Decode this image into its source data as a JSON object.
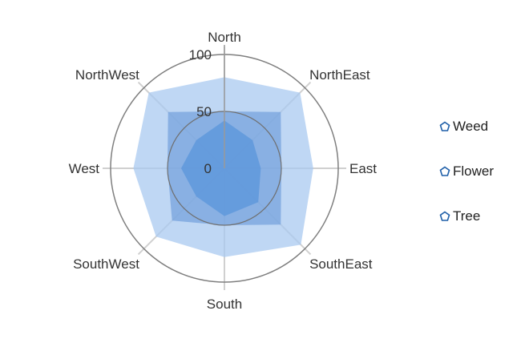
{
  "chart_data": {
    "type": "radar",
    "style": "filled-polar-area",
    "categories": [
      "North",
      "NorthEast",
      "East",
      "SouthEast",
      "South",
      "SouthWest",
      "West",
      "NorthWest"
    ],
    "series": [
      {
        "name": "Weed",
        "color": "#a9c9f0",
        "values": [
          80,
          94,
          78,
          95,
          78,
          85,
          80,
          94
        ]
      },
      {
        "name": "Flower",
        "color": "#77a3dd",
        "values": [
          50,
          70,
          50,
          70,
          50,
          65,
          50,
          70
        ]
      },
      {
        "name": "Tree",
        "color": "#5a96db",
        "values": [
          42,
          35,
          32,
          42,
          42,
          35,
          38,
          35
        ]
      }
    ],
    "radial_axis": {
      "min": 0,
      "max": 100,
      "ticks": [
        0,
        50,
        100
      ]
    },
    "grid": true,
    "legend_position": "right",
    "legend_icon": "pentagon-outline-icon",
    "outer_circle_color": "#7f7f7f",
    "spoke_color": "#d0d0d0"
  }
}
